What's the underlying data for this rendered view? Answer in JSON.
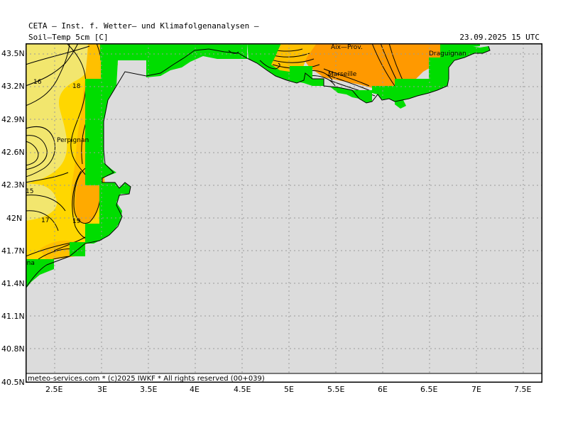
{
  "header": {
    "institute": "CETA — Inst. f. Wetter— und Klimafolgenanalysen —",
    "parameter": "Soil—Temp  5cm  [C]",
    "valid_time": "23.09.2025  15  UTC"
  },
  "footer": {
    "credit": "meteo-services.com * (c)2025 IWKF * All rights reserved (00+039)"
  },
  "axes": {
    "lat_labels": [
      "43.5N",
      "43.2N",
      "42.9N",
      "42.6N",
      "42.3N",
      "42N",
      "41.7N",
      "41.4N",
      "41.1N",
      "40.8N",
      "40.5N"
    ],
    "lon_labels": [
      "2.5E",
      "3E",
      "3.5E",
      "4E",
      "4.5E",
      "5E",
      "5.5E",
      "6E",
      "6.5E",
      "7E",
      "7.5E"
    ]
  },
  "places": {
    "perpignan": "Perpignan",
    "barcelona": "Barcelona",
    "aix": "Aix—Prov.",
    "marseille": "Marseille",
    "draguignan": "Draguignan"
  },
  "contour_labels": {
    "c16": "16",
    "c18a": "18",
    "c15": "15",
    "c17": "17",
    "c19": "19"
  },
  "colors": {
    "sea": "#dcdcdc",
    "land_mask": "#00dd00",
    "temp_15_16": "#f2e66e",
    "temp_17": "#ffd700",
    "temp_18": "#ffc000",
    "temp_19": "#ffaa00",
    "temp_warm_coast": "#ff9900",
    "grid": "#9a9a9a"
  }
}
